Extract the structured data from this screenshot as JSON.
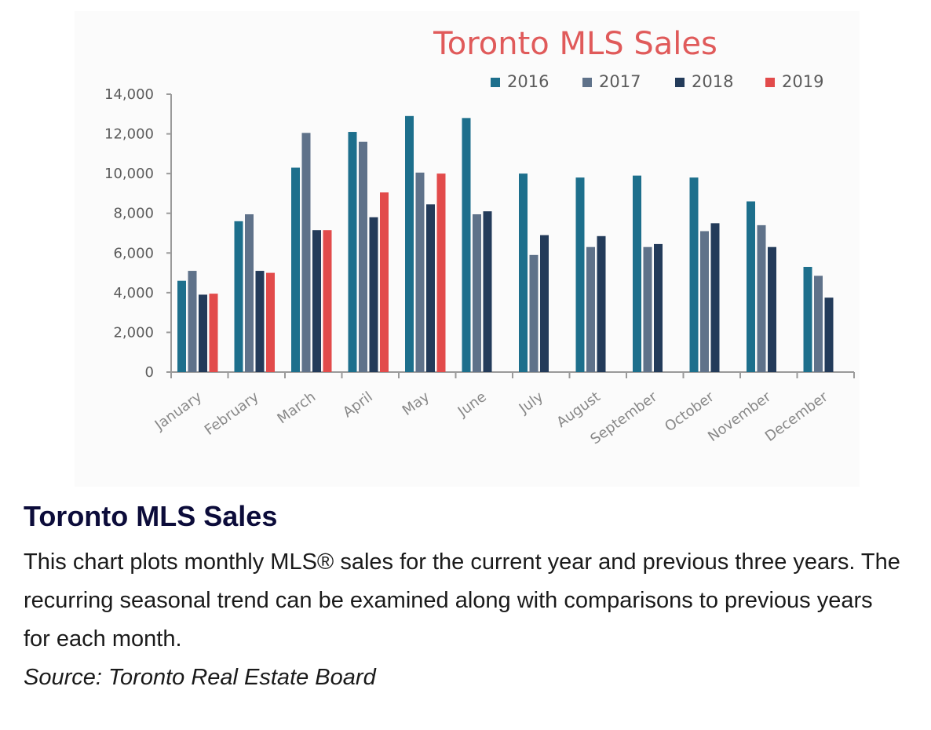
{
  "chart_data": {
    "type": "bar",
    "title": "Toronto MLS Sales",
    "xlabel": "",
    "ylabel": "",
    "ylim": [
      0,
      14000
    ],
    "yticks": [
      0,
      2000,
      4000,
      6000,
      8000,
      10000,
      12000,
      14000
    ],
    "ytick_labels": [
      "0",
      "2,000",
      "4,000",
      "6,000",
      "8,000",
      "10,000",
      "12,000",
      "14,000"
    ],
    "grid": false,
    "legend_position": "top-right",
    "categories": [
      "January",
      "February",
      "March",
      "April",
      "May",
      "June",
      "July",
      "August",
      "September",
      "October",
      "November",
      "December"
    ],
    "series": [
      {
        "name": "2016",
        "color": "#1d6f8c",
        "values": [
          4600,
          7600,
          10300,
          12100,
          12900,
          12800,
          10000,
          9800,
          9900,
          9800,
          8600,
          5300
        ]
      },
      {
        "name": "2017",
        "color": "#5f728a",
        "values": [
          5100,
          7950,
          12050,
          11600,
          10050,
          7950,
          5900,
          6300,
          6300,
          7100,
          7400,
          4850
        ]
      },
      {
        "name": "2018",
        "color": "#233b5a",
        "values": [
          3900,
          5100,
          7150,
          7800,
          8450,
          8100,
          6900,
          6850,
          6450,
          7500,
          6300,
          3750
        ]
      },
      {
        "name": "2019",
        "color": "#e24b4b",
        "values": [
          3950,
          5000,
          7150,
          9050,
          10000,
          null,
          null,
          null,
          null,
          null,
          null,
          null
        ]
      }
    ]
  },
  "caption": {
    "title": "Toronto MLS Sales",
    "description": "This chart plots monthly MLS® sales for the current year and previous three years. The recurring seasonal trend can be examined along with comparisons to previous years for each month.",
    "source": "Source: Toronto Real Estate Board"
  }
}
